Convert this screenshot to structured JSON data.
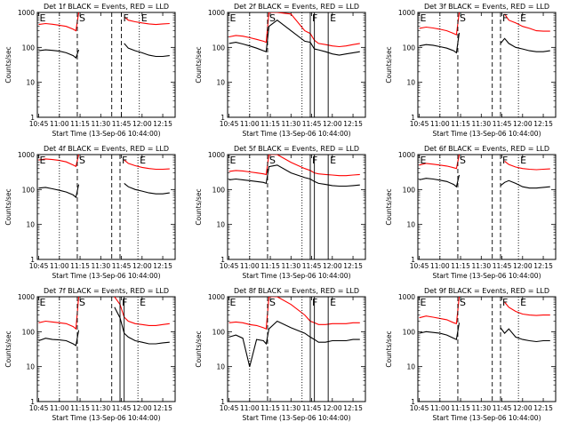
{
  "figure": {
    "common": {
      "ylabel": "Counts/sec",
      "xlabel": "Start Time (13-Sep-06 10:44:00)",
      "x_ticks": [
        "10:45",
        "11:00",
        "11:15",
        "11:30",
        "11:45",
        "12:00",
        "12:15"
      ],
      "y_ticks": [
        "1",
        "10",
        "100",
        "1000"
      ],
      "series_colors": {
        "events": "#000000",
        "lld": "#ff0000"
      }
    }
  },
  "chart_data": [
    {
      "type": "line",
      "title": "Det 1f BLACK = Events, RED = LLD",
      "xlabel": "Start Time (13-Sep-06 10:44:00)",
      "ylabel": "Counts/sec",
      "ylim": [
        1,
        1000
      ],
      "y_scale": "log",
      "x": [
        "10:45",
        "10:50",
        "10:55",
        "11:00",
        "11:05",
        "11:10",
        "11:12",
        "11:14",
        "11:20",
        "11:30",
        "11:40",
        "11:44",
        "11:47",
        "11:50",
        "11:55",
        "12:00",
        "12:05",
        "12:10",
        "12:15",
        "12:20"
      ],
      "series": [
        {
          "values": [
            80,
            85,
            82,
            78,
            70,
            58,
            50,
            85,
            null,
            null,
            null,
            null,
            130,
            95,
            80,
            70,
            60,
            55,
            55,
            58
          ]
        },
        {
          "values": [
            450,
            480,
            460,
            430,
            400,
            330,
            300,
            1000,
            null,
            null,
            null,
            null,
            750,
            600,
            540,
            500,
            470,
            450,
            470,
            480
          ]
        }
      ],
      "vlines": [
        {
          "x": "11:00",
          "style": "dotted"
        },
        {
          "x": "11:13",
          "style": "dashed",
          "label": "S"
        },
        {
          "x": "11:38",
          "style": "dashed"
        },
        {
          "x": "11:45",
          "style": "dashed",
          "label": "F"
        },
        {
          "x": "11:58",
          "style": "dotted",
          "label": "E"
        }
      ],
      "annotations": [
        {
          "text": "E",
          "x": "10:45"
        }
      ]
    },
    {
      "type": "line",
      "title": "Det 2f BLACK = Events, RED = LLD",
      "xlabel": "Start Time (13-Sep-06 10:44:00)",
      "ylabel": "Counts/sec",
      "ylim": [
        1,
        1000
      ],
      "y_scale": "log",
      "x": [
        "10:45",
        "10:50",
        "10:55",
        "11:00",
        "11:05",
        "11:10",
        "11:12",
        "11:14",
        "11:20",
        "11:30",
        "11:40",
        "11:44",
        "11:47",
        "11:50",
        "11:55",
        "12:00",
        "12:05",
        "12:10",
        "12:15",
        "12:20"
      ],
      "series": [
        {
          "values": [
            130,
            140,
            125,
            110,
            95,
            80,
            75,
            400,
            600,
            300,
            150,
            140,
            90,
            85,
            75,
            65,
            60,
            65,
            70,
            75
          ]
        },
        {
          "values": [
            200,
            220,
            210,
            190,
            170,
            150,
            140,
            1000,
            1000,
            900,
            300,
            250,
            160,
            130,
            120,
            110,
            105,
            110,
            120,
            130
          ]
        }
      ],
      "vlines": [
        {
          "x": "11:00",
          "style": "dotted"
        },
        {
          "x": "11:13",
          "style": "dashed",
          "label": "S"
        },
        {
          "x": "11:38",
          "style": "dotted"
        },
        {
          "x": "11:44",
          "style": "solid",
          "label": "F"
        },
        {
          "x": "11:47",
          "style": "solid"
        },
        {
          "x": "11:57",
          "style": "solid",
          "label": "E"
        }
      ],
      "annotations": [
        {
          "text": "E",
          "x": "10:45"
        }
      ]
    },
    {
      "type": "line",
      "title": "Det 3f BLACK = Events, RED = LLD",
      "xlabel": "Start Time (13-Sep-06 10:44:00)",
      "ylabel": "Counts/sec",
      "ylim": [
        1,
        1000
      ],
      "y_scale": "log",
      "x": [
        "10:45",
        "10:50",
        "10:55",
        "11:00",
        "11:05",
        "11:10",
        "11:12",
        "11:14",
        "11:20",
        "11:30",
        "11:40",
        "11:44",
        "11:47",
        "11:50",
        "11:55",
        "12:00",
        "12:05",
        "12:10",
        "12:15",
        "12:20"
      ],
      "series": [
        {
          "values": [
            110,
            120,
            115,
            105,
            95,
            80,
            70,
            260,
            null,
            null,
            null,
            130,
            180,
            130,
            100,
            90,
            80,
            75,
            75,
            80
          ]
        },
        {
          "values": [
            350,
            380,
            360,
            330,
            300,
            250,
            230,
            1000,
            null,
            null,
            null,
            null,
            900,
            600,
            500,
            400,
            350,
            300,
            290,
            290
          ]
        }
      ],
      "vlines": [
        {
          "x": "11:00",
          "style": "dotted"
        },
        {
          "x": "11:13",
          "style": "dashed",
          "label": "S"
        },
        {
          "x": "11:38",
          "style": "dashed"
        },
        {
          "x": "11:44",
          "style": "dashed",
          "label": "F"
        },
        {
          "x": "11:57",
          "style": "dotted",
          "label": "E"
        }
      ],
      "annotations": [
        {
          "text": "E",
          "x": "10:45"
        }
      ]
    },
    {
      "type": "line",
      "title": "Det 4f BLACK = Events, RED = LLD",
      "xlabel": "Start Time (13-Sep-06 10:44:00)",
      "ylabel": "Counts/sec",
      "ylim": [
        1,
        1000
      ],
      "y_scale": "log",
      "x": [
        "10:45",
        "10:50",
        "10:55",
        "11:00",
        "11:05",
        "11:10",
        "11:12",
        "11:14",
        "11:20",
        "11:30",
        "11:40",
        "11:44",
        "11:47",
        "11:50",
        "11:55",
        "12:00",
        "12:05",
        "12:10",
        "12:15",
        "12:20"
      ],
      "series": [
        {
          "values": [
            110,
            115,
            105,
            95,
            85,
            70,
            60,
            140,
            null,
            null,
            null,
            null,
            150,
            120,
            100,
            90,
            80,
            75,
            75,
            80
          ]
        },
        {
          "values": [
            700,
            750,
            720,
            680,
            620,
            500,
            460,
            1000,
            null,
            null,
            null,
            null,
            700,
            560,
            480,
            430,
            400,
            380,
            380,
            390
          ]
        }
      ],
      "vlines": [
        {
          "x": "11:00",
          "style": "dotted"
        },
        {
          "x": "11:13",
          "style": "dashed",
          "label": "S"
        },
        {
          "x": "11:38",
          "style": "dashed"
        },
        {
          "x": "11:44",
          "style": "dashed",
          "label": "F"
        },
        {
          "x": "11:57",
          "style": "dotted",
          "label": "E"
        }
      ],
      "annotations": [
        {
          "text": "E",
          "x": "10:45"
        }
      ]
    },
    {
      "type": "line",
      "title": "Det 5f BLACK = Events, RED = LLD",
      "xlabel": "Start Time (13-Sep-06 10:44:00)",
      "ylabel": "Counts/sec",
      "ylim": [
        1,
        1000
      ],
      "y_scale": "log",
      "x": [
        "10:45",
        "10:50",
        "10:55",
        "11:00",
        "11:05",
        "11:10",
        "11:12",
        "11:14",
        "11:20",
        "11:30",
        "11:40",
        "11:44",
        "11:47",
        "11:50",
        "11:55",
        "12:00",
        "12:05",
        "12:10",
        "12:15",
        "12:20"
      ],
      "series": [
        {
          "values": [
            190,
            200,
            190,
            180,
            170,
            160,
            150,
            450,
            500,
            300,
            220,
            200,
            170,
            150,
            140,
            130,
            125,
            125,
            130,
            135
          ]
        },
        {
          "values": [
            330,
            350,
            340,
            320,
            300,
            280,
            270,
            1000,
            1000,
            600,
            400,
            350,
            300,
            280,
            270,
            260,
            250,
            250,
            260,
            270
          ]
        }
      ],
      "vlines": [
        {
          "x": "11:00",
          "style": "dotted"
        },
        {
          "x": "11:13",
          "style": "dashed",
          "label": "S"
        },
        {
          "x": "11:38",
          "style": "dotted"
        },
        {
          "x": "11:44",
          "style": "solid",
          "label": "F"
        },
        {
          "x": "11:47",
          "style": "solid"
        },
        {
          "x": "11:57",
          "style": "solid",
          "label": "E"
        }
      ],
      "annotations": [
        {
          "text": "E",
          "x": "10:45"
        }
      ]
    },
    {
      "type": "line",
      "title": "Det 6f BLACK = Events, RED = LLD",
      "xlabel": "Start Time (13-Sep-06 10:44:00)",
      "ylabel": "Counts/sec",
      "ylim": [
        1,
        1000
      ],
      "y_scale": "log",
      "x": [
        "10:45",
        "10:50",
        "10:55",
        "11:00",
        "11:05",
        "11:10",
        "11:12",
        "11:14",
        "11:20",
        "11:30",
        "11:40",
        "11:44",
        "11:47",
        "11:50",
        "11:55",
        "12:00",
        "12:05",
        "12:10",
        "12:15",
        "12:20"
      ],
      "series": [
        {
          "values": [
            190,
            210,
            200,
            185,
            170,
            140,
            120,
            260,
            null,
            null,
            null,
            130,
            160,
            180,
            150,
            120,
            110,
            110,
            115,
            120
          ]
        },
        {
          "values": [
            500,
            560,
            530,
            500,
            470,
            420,
            400,
            1000,
            null,
            null,
            null,
            null,
            650,
            520,
            440,
            400,
            380,
            370,
            380,
            390
          ]
        }
      ],
      "vlines": [
        {
          "x": "11:00",
          "style": "dotted"
        },
        {
          "x": "11:13",
          "style": "dashed",
          "label": "S"
        },
        {
          "x": "11:38",
          "style": "dashed"
        },
        {
          "x": "11:44",
          "style": "dashed",
          "label": "F"
        },
        {
          "x": "11:57",
          "style": "dotted",
          "label": "E"
        }
      ],
      "annotations": [
        {
          "text": "E",
          "x": "10:45"
        }
      ]
    },
    {
      "type": "line",
      "title": "Det 7f BLACK = Events, RED = LLD",
      "xlabel": "Start Time (13-Sep-06 10:44:00)",
      "ylabel": "Counts/sec",
      "ylim": [
        1,
        1000
      ],
      "y_scale": "log",
      "x": [
        "10:45",
        "10:50",
        "10:55",
        "11:00",
        "11:05",
        "11:10",
        "11:12",
        "11:14",
        "11:20",
        "11:30",
        "11:40",
        "11:44",
        "11:47",
        "11:50",
        "11:55",
        "12:00",
        "12:05",
        "12:10",
        "12:15",
        "12:20"
      ],
      "series": [
        {
          "values": [
            55,
            65,
            60,
            58,
            55,
            45,
            40,
            110,
            null,
            null,
            500,
            250,
            90,
            70,
            55,
            50,
            45,
            45,
            48,
            50
          ]
        },
        {
          "values": [
            180,
            200,
            190,
            180,
            170,
            140,
            120,
            1000,
            null,
            null,
            1000,
            600,
            260,
            200,
            170,
            160,
            150,
            150,
            160,
            170
          ]
        }
      ],
      "vlines": [
        {
          "x": "11:00",
          "style": "dotted"
        },
        {
          "x": "11:13",
          "style": "dashed",
          "label": "S"
        },
        {
          "x": "11:38",
          "style": "dashed"
        },
        {
          "x": "11:44",
          "style": "solid",
          "label": "F"
        },
        {
          "x": "11:47",
          "style": "solid"
        },
        {
          "x": "11:57",
          "style": "dotted",
          "label": "E"
        }
      ],
      "annotations": [
        {
          "text": "E",
          "x": "10:45"
        }
      ]
    },
    {
      "type": "line",
      "title": "Det 8f BLACK = Events, RED = LLD",
      "xlabel": "Start Time (13-Sep-06 10:44:00)",
      "ylabel": "Counts/sec",
      "ylim": [
        1,
        1000
      ],
      "y_scale": "log",
      "x": [
        "10:45",
        "10:50",
        "10:55",
        "11:00",
        "11:05",
        "11:10",
        "11:12",
        "11:14",
        "11:20",
        "11:30",
        "11:40",
        "11:44",
        "11:47",
        "11:50",
        "11:55",
        "12:00",
        "12:05",
        "12:10",
        "12:15",
        "12:20"
      ],
      "series": [
        {
          "values": [
            70,
            80,
            65,
            10,
            60,
            55,
            45,
            120,
            200,
            130,
            90,
            70,
            60,
            50,
            50,
            55,
            55,
            55,
            60,
            60
          ]
        },
        {
          "values": [
            180,
            190,
            180,
            160,
            150,
            130,
            120,
            1000,
            1000,
            600,
            300,
            200,
            180,
            160,
            160,
            170,
            170,
            170,
            180,
            180
          ]
        }
      ],
      "vlines": [
        {
          "x": "11:00",
          "style": "dotted"
        },
        {
          "x": "11:13",
          "style": "dashed",
          "label": "S"
        },
        {
          "x": "11:38",
          "style": "dotted"
        },
        {
          "x": "11:44",
          "style": "solid",
          "label": "F"
        },
        {
          "x": "11:47",
          "style": "solid"
        },
        {
          "x": "11:57",
          "style": "solid",
          "label": "E"
        }
      ],
      "annotations": [
        {
          "text": "E",
          "x": "10:45"
        }
      ]
    },
    {
      "type": "line",
      "title": "Det 9f BLACK = Events, RED = LLD",
      "xlabel": "Start Time (13-Sep-06 10:44:00)",
      "ylabel": "Counts/sec",
      "ylim": [
        1,
        1000
      ],
      "y_scale": "log",
      "x": [
        "10:45",
        "10:50",
        "10:55",
        "11:00",
        "11:05",
        "11:10",
        "11:12",
        "11:14",
        "11:20",
        "11:30",
        "11:40",
        "11:44",
        "11:47",
        "11:50",
        "11:55",
        "12:00",
        "12:05",
        "12:10",
        "12:15",
        "12:20"
      ],
      "series": [
        {
          "values": [
            90,
            100,
            95,
            90,
            80,
            65,
            60,
            180,
            null,
            null,
            null,
            130,
            90,
            120,
            70,
            60,
            55,
            52,
            55,
            55
          ]
        },
        {
          "values": [
            250,
            280,
            260,
            240,
            220,
            180,
            170,
            1000,
            null,
            null,
            null,
            null,
            700,
            500,
            380,
            320,
            300,
            290,
            300,
            300
          ]
        }
      ],
      "vlines": [
        {
          "x": "11:00",
          "style": "dotted"
        },
        {
          "x": "11:13",
          "style": "dashed",
          "label": "S"
        },
        {
          "x": "11:38",
          "style": "dashed"
        },
        {
          "x": "11:44",
          "style": "dashed",
          "label": "F"
        },
        {
          "x": "11:57",
          "style": "dotted",
          "label": "E"
        }
      ],
      "annotations": [
        {
          "text": "E",
          "x": "10:45"
        }
      ]
    }
  ]
}
